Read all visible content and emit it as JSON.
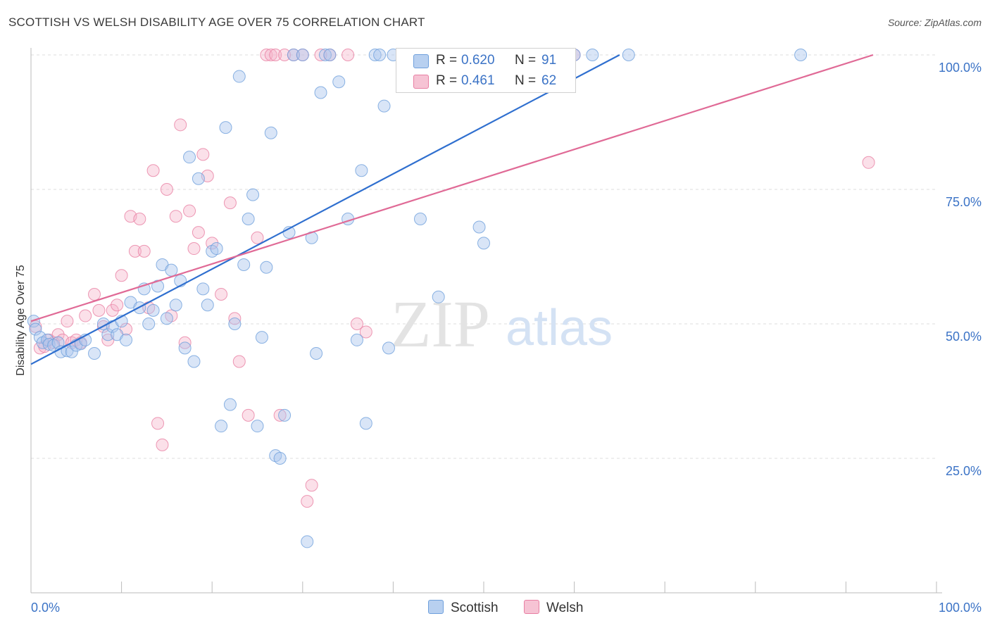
{
  "header": {
    "title": "SCOTTISH VS WELSH DISABILITY AGE OVER 75 CORRELATION CHART",
    "source": "Source: ZipAtlas.com"
  },
  "legend": {
    "series": [
      {
        "name": "Scottish",
        "r_label": "R =",
        "r_value": "0.620",
        "n_label": "N =",
        "n_value": "91",
        "color": "#6fa0dc",
        "fill": "#b8d0f0"
      },
      {
        "name": "Welsh",
        "r_label": "R =",
        "r_value": "0.461",
        "n_label": "N =",
        "n_value": "62",
        "color": "#e87fa3",
        "fill": "#f6c3d4"
      }
    ]
  },
  "watermark": {
    "zip": "ZIP",
    "atlas": "atlas"
  },
  "chart_data": {
    "type": "scatter",
    "title": "SCOTTISH VS WELSH DISABILITY AGE OVER 75 CORRELATION CHART",
    "xlabel": "",
    "ylabel": "Disability Age Over 75",
    "xlim": [
      0,
      100
    ],
    "ylim": [
      0,
      100
    ],
    "x_tick_labels": [
      "0.0%",
      "100.0%"
    ],
    "y_tick_labels": [
      "25.0%",
      "50.0%",
      "75.0%",
      "100.0%"
    ],
    "y_ticks": [
      25,
      50,
      75,
      100
    ],
    "grid": true,
    "legend_position": "top-center",
    "series": [
      {
        "name": "Scottish",
        "color": "#6fa0dc",
        "trend": {
          "x": [
            0,
            65
          ],
          "y": [
            42.5,
            100
          ]
        },
        "points": [
          [
            0.3,
            50.5
          ],
          [
            0.5,
            49
          ],
          [
            1,
            47.5
          ],
          [
            1.3,
            46.5
          ],
          [
            1.8,
            47
          ],
          [
            2,
            46.2
          ],
          [
            2.5,
            46
          ],
          [
            3,
            46.5
          ],
          [
            3.3,
            44.8
          ],
          [
            4,
            45
          ],
          [
            4.5,
            44.8
          ],
          [
            5,
            46
          ],
          [
            5.5,
            46.3
          ],
          [
            6,
            47
          ],
          [
            7,
            44.5
          ],
          [
            8,
            50
          ],
          [
            8.5,
            48
          ],
          [
            9,
            49.5
          ],
          [
            9.5,
            48
          ],
          [
            10,
            50.5
          ],
          [
            10.5,
            47
          ],
          [
            11,
            54
          ],
          [
            12,
            53
          ],
          [
            12.5,
            56.5
          ],
          [
            13,
            50
          ],
          [
            13.5,
            52.5
          ],
          [
            14,
            57
          ],
          [
            14.5,
            61
          ],
          [
            15,
            51
          ],
          [
            15.5,
            60
          ],
          [
            16,
            53.5
          ],
          [
            16.5,
            58
          ],
          [
            17,
            45.5
          ],
          [
            17.5,
            81
          ],
          [
            18,
            43
          ],
          [
            18.5,
            77
          ],
          [
            19,
            56.5
          ],
          [
            19.5,
            53.5
          ],
          [
            20,
            63.5
          ],
          [
            20.5,
            64
          ],
          [
            21,
            31
          ],
          [
            21.5,
            86.5
          ],
          [
            22,
            35
          ],
          [
            22.5,
            50
          ],
          [
            23,
            96
          ],
          [
            23.5,
            61
          ],
          [
            24,
            69.5
          ],
          [
            24.5,
            74
          ],
          [
            25,
            31
          ],
          [
            25.5,
            47.5
          ],
          [
            26,
            60.5
          ],
          [
            26.5,
            85.5
          ],
          [
            27,
            25.5
          ],
          [
            27.5,
            25
          ],
          [
            28,
            33
          ],
          [
            28.5,
            67
          ],
          [
            29,
            100
          ],
          [
            30,
            100
          ],
          [
            30.5,
            9.5
          ],
          [
            31,
            66
          ],
          [
            31.5,
            44.5
          ],
          [
            32,
            93
          ],
          [
            32.5,
            100
          ],
          [
            33,
            100
          ],
          [
            34,
            95
          ],
          [
            35,
            69.5
          ],
          [
            36,
            47
          ],
          [
            36.5,
            78.5
          ],
          [
            37,
            31.5
          ],
          [
            38,
            100
          ],
          [
            38.5,
            100
          ],
          [
            39,
            90.5
          ],
          [
            39.5,
            45.5
          ],
          [
            40,
            100
          ],
          [
            41,
            100
          ],
          [
            42,
            100
          ],
          [
            43,
            69.5
          ],
          [
            45,
            55
          ],
          [
            46,
            100
          ],
          [
            47,
            100
          ],
          [
            48,
            100
          ],
          [
            49,
            100
          ],
          [
            49.5,
            68
          ],
          [
            50,
            65
          ],
          [
            55,
            100
          ],
          [
            56,
            100
          ],
          [
            58,
            100
          ],
          [
            60,
            100
          ],
          [
            62,
            100
          ],
          [
            66,
            100
          ],
          [
            85,
            100
          ]
        ]
      },
      {
        "name": "Welsh",
        "color": "#e87fa3",
        "trend": {
          "x": [
            0,
            93
          ],
          "y": [
            50.5,
            100
          ]
        },
        "points": [
          [
            0.5,
            49.5
          ],
          [
            1,
            45.5
          ],
          [
            1.5,
            45.8
          ],
          [
            2,
            47
          ],
          [
            2.5,
            46.5
          ],
          [
            3,
            48
          ],
          [
            3.5,
            47
          ],
          [
            4,
            50.5
          ],
          [
            4.5,
            46.5
          ],
          [
            5,
            47
          ],
          [
            5.5,
            46.5
          ],
          [
            6,
            51.5
          ],
          [
            7,
            55.5
          ],
          [
            7.5,
            52.5
          ],
          [
            8,
            49.5
          ],
          [
            8.5,
            47
          ],
          [
            9,
            52.5
          ],
          [
            9.5,
            53.5
          ],
          [
            10,
            59
          ],
          [
            10.5,
            49
          ],
          [
            11,
            70
          ],
          [
            11.5,
            63.5
          ],
          [
            12,
            69.5
          ],
          [
            12.5,
            63.5
          ],
          [
            13,
            53
          ],
          [
            13.5,
            78.5
          ],
          [
            14,
            31.5
          ],
          [
            14.5,
            27.5
          ],
          [
            15,
            75
          ],
          [
            15.5,
            51.5
          ],
          [
            16,
            70
          ],
          [
            16.5,
            87
          ],
          [
            17,
            46.5
          ],
          [
            17.5,
            71
          ],
          [
            18,
            64
          ],
          [
            18.5,
            67
          ],
          [
            19,
            81.5
          ],
          [
            19.5,
            77.5
          ],
          [
            20,
            65
          ],
          [
            21,
            55.5
          ],
          [
            22,
            72.5
          ],
          [
            22.5,
            51
          ],
          [
            23,
            43
          ],
          [
            24,
            33
          ],
          [
            25,
            66
          ],
          [
            26,
            100
          ],
          [
            26.5,
            100
          ],
          [
            27,
            100
          ],
          [
            27.5,
            33
          ],
          [
            28,
            100
          ],
          [
            29,
            100
          ],
          [
            30,
            100
          ],
          [
            30.5,
            17
          ],
          [
            31,
            20
          ],
          [
            32,
            100
          ],
          [
            33,
            100
          ],
          [
            35,
            100
          ],
          [
            36,
            50
          ],
          [
            37,
            48.5
          ],
          [
            46,
            100
          ],
          [
            60,
            100
          ],
          [
            92.5,
            80
          ]
        ]
      }
    ]
  }
}
